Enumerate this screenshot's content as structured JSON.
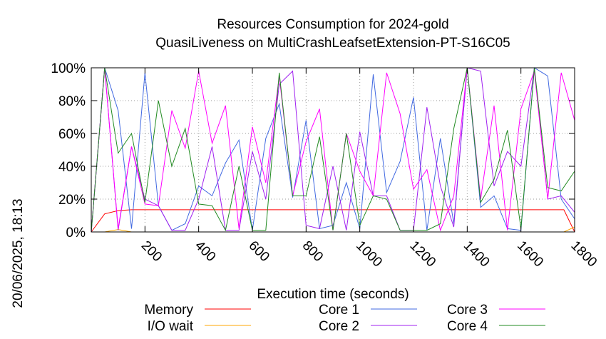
{
  "chart_data": {
    "type": "line",
    "title_line1": "Resources Consumption for 2024-gold",
    "title_line2": "QuasiLiveness on MultiCrashLeafsetExtension-PT-S16C05",
    "xlabel": "Execution time (seconds)",
    "ylabel": "",
    "side_label": "20/06/2025, 18:13",
    "xlim": [
      0,
      1800
    ],
    "ylim": [
      0,
      100
    ],
    "x_ticks": [
      200,
      400,
      600,
      800,
      1000,
      1200,
      1400,
      1600,
      1800
    ],
    "x_tick_labels": [
      "200",
      "400",
      "600",
      "800",
      "1000",
      "1200",
      "1400",
      "1600",
      "1800"
    ],
    "y_ticks": [
      0,
      20,
      40,
      60,
      80,
      100
    ],
    "y_tick_labels": [
      "0%",
      "20%",
      "40%",
      "60%",
      "80%",
      "100%"
    ],
    "grid": true,
    "legend_placement": "bottom",
    "series": [
      {
        "name": "Memory",
        "color": "#ff0000",
        "x": [
          0,
          50,
          100,
          150,
          200,
          400,
          600,
          800,
          1000,
          1200,
          1400,
          1600,
          1760,
          1800
        ],
        "y": [
          0,
          11,
          13,
          13.5,
          13.5,
          13.5,
          13.5,
          13.5,
          13.5,
          13.5,
          13.5,
          13.5,
          13.5,
          0
        ]
      },
      {
        "name": "I/O wait",
        "color": "#ffa500",
        "x": [
          0,
          50,
          100,
          150,
          200,
          300,
          400,
          1700,
          1760,
          1800
        ],
        "y": [
          0,
          0,
          1.5,
          0,
          0,
          0,
          0,
          0,
          0,
          3
        ]
      },
      {
        "name": "Core 1",
        "color": "#4169e1",
        "x": [
          0,
          50,
          100,
          150,
          200,
          250,
          300,
          350,
          400,
          450,
          500,
          550,
          600,
          650,
          700,
          750,
          800,
          850,
          900,
          950,
          1000,
          1050,
          1100,
          1150,
          1200,
          1250,
          1300,
          1350,
          1400,
          1450,
          1500,
          1550,
          1600,
          1650,
          1700,
          1750,
          1800
        ],
        "y": [
          0,
          100,
          74,
          2,
          97,
          16,
          1,
          5,
          28,
          22,
          42,
          56,
          1,
          57,
          78,
          21,
          68,
          2,
          4,
          30,
          2,
          96,
          24,
          43,
          82,
          1,
          57,
          5,
          100,
          15,
          22,
          2,
          1,
          100,
          95,
          20,
          8
        ]
      },
      {
        "name": "Core 2",
        "color": "#a020f0",
        "x": [
          0,
          50,
          100,
          150,
          200,
          250,
          300,
          350,
          400,
          450,
          500,
          550,
          600,
          650,
          700,
          750,
          800,
          850,
          900,
          950,
          1000,
          1050,
          1100,
          1150,
          1200,
          1250,
          1300,
          1350,
          1400,
          1450,
          1500,
          1550,
          1600,
          1650,
          1700,
          1750,
          1800
        ],
        "y": [
          0,
          100,
          1,
          52,
          20,
          16,
          1,
          1,
          20,
          52,
          1,
          1,
          49,
          20,
          90,
          98,
          4,
          2,
          40,
          1,
          61,
          22,
          22,
          1,
          1,
          76,
          28,
          3,
          100,
          98,
          28,
          49,
          40,
          100,
          20,
          22,
          12
        ]
      },
      {
        "name": "Core 3",
        "color": "#ff00ff",
        "x": [
          0,
          50,
          100,
          150,
          200,
          250,
          300,
          350,
          400,
          450,
          500,
          550,
          600,
          650,
          700,
          750,
          800,
          850,
          900,
          950,
          1000,
          1050,
          1100,
          1150,
          1200,
          1250,
          1300,
          1350,
          1400,
          1450,
          1500,
          1550,
          1600,
          1650,
          1700,
          1750,
          1800
        ],
        "y": [
          0,
          100,
          2,
          52,
          17,
          16,
          74,
          51,
          98,
          54,
          77,
          2,
          64,
          30,
          95,
          22,
          55,
          75,
          1,
          60,
          37,
          22,
          97,
          72,
          26,
          38,
          1,
          22,
          100,
          20,
          77,
          1,
          75,
          98,
          20,
          97,
          68
        ]
      },
      {
        "name": "Core 4",
        "color": "#228b22",
        "x": [
          0,
          50,
          100,
          150,
          200,
          250,
          300,
          350,
          400,
          450,
          500,
          550,
          600,
          650,
          700,
          750,
          800,
          850,
          900,
          950,
          1000,
          1050,
          1100,
          1150,
          1200,
          1250,
          1300,
          1350,
          1400,
          1450,
          1500,
          1550,
          1600,
          1650,
          1700,
          1750,
          1800
        ],
        "y": [
          0,
          100,
          48,
          60,
          18,
          80,
          40,
          63,
          17,
          16,
          1,
          40,
          1,
          1,
          97,
          22,
          22,
          58,
          1,
          60,
          4,
          22,
          20,
          1,
          1,
          1,
          5,
          63,
          100,
          18,
          32,
          62,
          2,
          100,
          27,
          25,
          37
        ]
      }
    ]
  }
}
